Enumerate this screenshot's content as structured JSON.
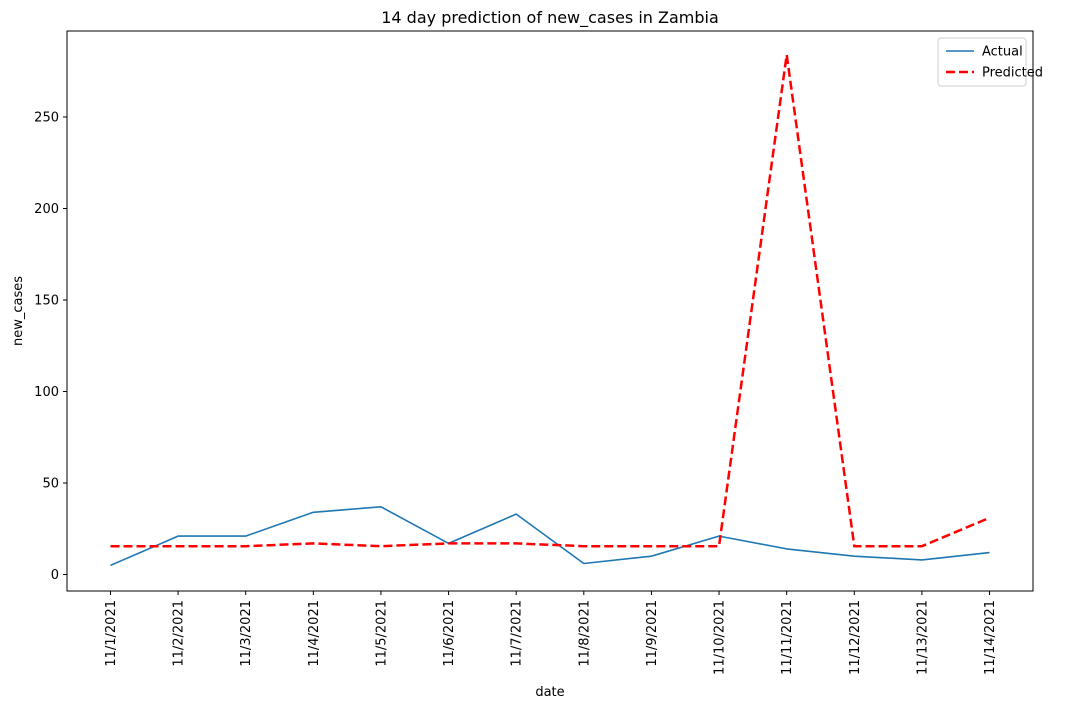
{
  "chart_data": {
    "type": "line",
    "title": "14 day prediction of new_cases in Zambia",
    "xlabel": "date",
    "ylabel": "new_cases",
    "x": [
      "11/1/2021",
      "11/2/2021",
      "11/3/2021",
      "11/4/2021",
      "11/5/2021",
      "11/6/2021",
      "11/7/2021",
      "11/8/2021",
      "11/9/2021",
      "11/10/2021",
      "11/11/2021",
      "11/12/2021",
      "11/13/2021",
      "11/14/2021"
    ],
    "ylim": [
      -9,
      297
    ],
    "yticks": [
      0,
      50,
      100,
      150,
      200,
      250
    ],
    "grid": false,
    "legend_position": "top-right",
    "series": [
      {
        "name": "Actual",
        "color": "#1f77b4",
        "style": "solid",
        "values": [
          5,
          21,
          21,
          34,
          37,
          17,
          33,
          6,
          10,
          21,
          14,
          10,
          8,
          12
        ]
      },
      {
        "name": "Predicted",
        "color": "#ff0000",
        "style": "dashed",
        "values": [
          15.5,
          15.5,
          15.5,
          17,
          15.5,
          17,
          17,
          15.5,
          15.5,
          15.5,
          284,
          15.5,
          15.5,
          31
        ]
      }
    ]
  }
}
